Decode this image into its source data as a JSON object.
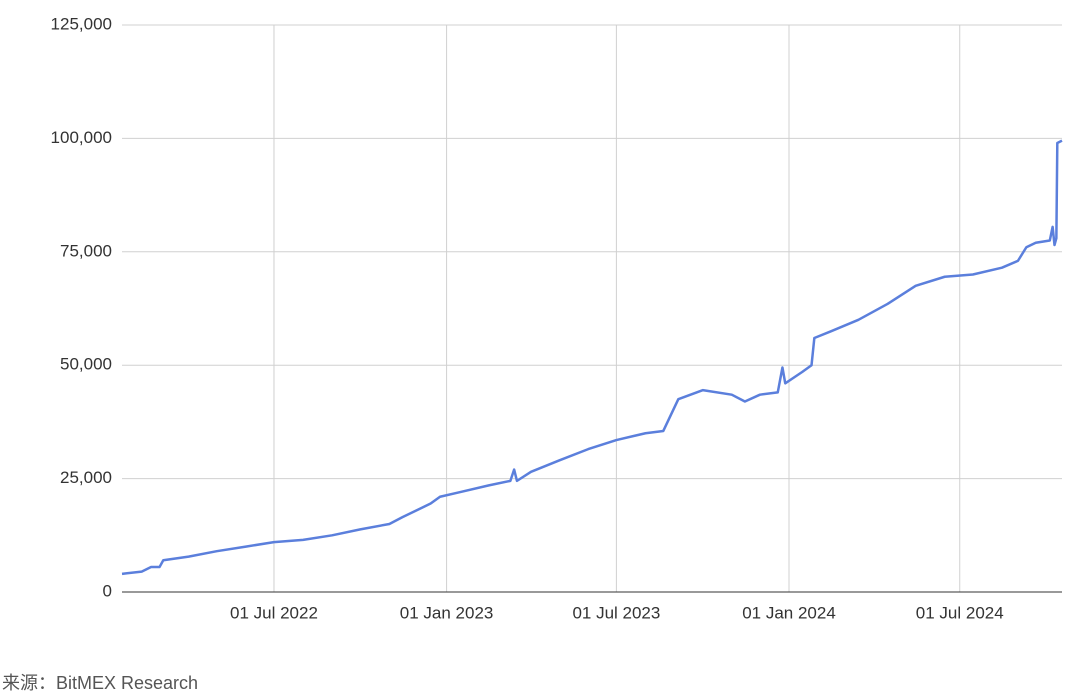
{
  "chart_data": {
    "type": "line",
    "x": [
      "2022-01-20",
      "2022-02-10",
      "2022-02-20",
      "2022-03-01",
      "2022-03-05",
      "2022-04-01",
      "2022-05-01",
      "2022-06-01",
      "2022-07-01",
      "2022-08-01",
      "2022-09-01",
      "2022-10-01",
      "2022-11-01",
      "2022-11-15",
      "2022-12-15",
      "2022-12-25",
      "2023-01-15",
      "2023-02-15",
      "2023-03-10",
      "2023-03-14",
      "2023-03-17",
      "2023-04-01",
      "2023-05-01",
      "2023-06-01",
      "2023-07-01",
      "2023-08-01",
      "2023-08-20",
      "2023-09-05",
      "2023-10-01",
      "2023-11-01",
      "2023-11-15",
      "2023-12-01",
      "2023-12-20",
      "2023-12-25",
      "2023-12-28",
      "2024-01-15",
      "2024-01-25",
      "2024-01-28",
      "2024-02-15",
      "2024-03-15",
      "2024-04-15",
      "2024-05-15",
      "2024-06-15",
      "2024-07-15",
      "2024-08-15",
      "2024-09-01",
      "2024-09-10",
      "2024-09-20",
      "2024-10-05",
      "2024-10-08",
      "2024-10-10",
      "2024-10-12",
      "2024-10-13",
      "2024-10-18"
    ],
    "values": [
      4000,
      4500,
      5500,
      5500,
      7000,
      7800,
      9000,
      10000,
      11000,
      11500,
      12500,
      13800,
      15000,
      16500,
      19500,
      21000,
      22000,
      23500,
      24500,
      27000,
      24500,
      26500,
      29000,
      31500,
      33500,
      35000,
      35500,
      42500,
      44500,
      43500,
      42000,
      43500,
      44000,
      49500,
      46000,
      48500,
      50000,
      56000,
      57500,
      60000,
      63500,
      67500,
      69500,
      70000,
      71500,
      73000,
      76000,
      77000,
      77500,
      80500,
      76500,
      78000,
      99000,
      99500
    ],
    "color": "#5b7fdc",
    "xlim": [
      "2022-01-20",
      "2024-10-18"
    ],
    "xticks": [
      {
        "value": "2022-07-01",
        "label": "01 Jul 2022"
      },
      {
        "value": "2023-01-01",
        "label": "01 Jan 2023"
      },
      {
        "value": "2023-07-01",
        "label": "01 Jul 2023"
      },
      {
        "value": "2024-01-01",
        "label": "01 Jan 2024"
      },
      {
        "value": "2024-07-01",
        "label": "01 Jul 2024"
      }
    ],
    "ylim": [
      0,
      125000
    ],
    "yticks": [
      0,
      {
        "value": 25000,
        "label": "25,000"
      },
      {
        "value": 50000,
        "label": "50,000"
      },
      {
        "value": 75000,
        "label": "75,000"
      },
      {
        "value": 100000,
        "label": "100,000"
      },
      {
        "value": 125000,
        "label": "125,000"
      }
    ],
    "grid": true,
    "source": "来源：BitMEX Research"
  }
}
